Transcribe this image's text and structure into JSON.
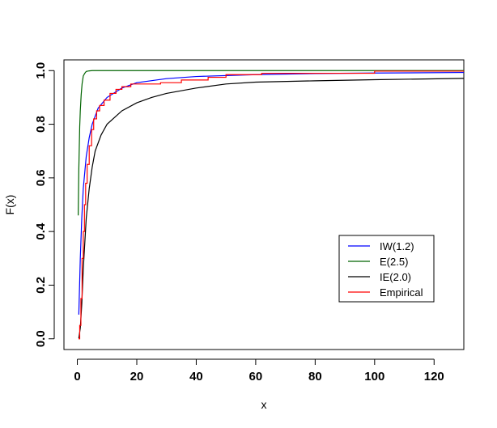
{
  "chart_data": {
    "type": "line",
    "title": "",
    "xlabel": "x",
    "ylabel": "F(x)",
    "xlim": [
      -4.5,
      130
    ],
    "ylim": [
      -0.04,
      1.04
    ],
    "x_ticks": [
      0,
      20,
      40,
      60,
      80,
      100,
      120
    ],
    "y_ticks": [
      0.0,
      0.2,
      0.4,
      0.6,
      0.8,
      1.0
    ],
    "x_tick_labels": [
      "0",
      "20",
      "40",
      "60",
      "80",
      "100",
      "120"
    ],
    "y_tick_labels": [
      "0.0",
      "0.2",
      "0.4",
      "0.6",
      "0.8",
      "1.0"
    ],
    "grid": false,
    "legend_position": "bottom-right",
    "series": [
      {
        "name": "IW(1.2)",
        "color": "#0000ff",
        "style": "line",
        "points": [
          [
            0.5,
            0.09
          ],
          [
            1,
            0.3
          ],
          [
            1.5,
            0.45
          ],
          [
            2,
            0.56
          ],
          [
            3,
            0.68
          ],
          [
            4,
            0.75
          ],
          [
            5,
            0.8
          ],
          [
            7,
            0.86
          ],
          [
            10,
            0.9
          ],
          [
            15,
            0.935
          ],
          [
            20,
            0.955
          ],
          [
            30,
            0.97
          ],
          [
            40,
            0.978
          ],
          [
            60,
            0.985
          ],
          [
            80,
            0.989
          ],
          [
            100,
            0.991
          ],
          [
            130,
            0.993
          ]
        ]
      },
      {
        "name": "E(2.5)",
        "color": "#006400",
        "style": "line",
        "points": [
          [
            0.3,
            0.46
          ],
          [
            0.5,
            0.63
          ],
          [
            0.8,
            0.79
          ],
          [
            1,
            0.85
          ],
          [
            1.3,
            0.91
          ],
          [
            1.6,
            0.95
          ],
          [
            2,
            0.98
          ],
          [
            2.5,
            0.99
          ],
          [
            3,
            0.997
          ],
          [
            4,
            0.999
          ],
          [
            5,
            1.0
          ],
          [
            130,
            1.0
          ]
        ]
      },
      {
        "name": "IE(2.0)",
        "color": "#000000",
        "style": "line",
        "points": [
          [
            0.5,
            0.002
          ],
          [
            1,
            0.04
          ],
          [
            1.5,
            0.13
          ],
          [
            2,
            0.26
          ],
          [
            3,
            0.45
          ],
          [
            4,
            0.56
          ],
          [
            5,
            0.64
          ],
          [
            6,
            0.7
          ],
          [
            8,
            0.76
          ],
          [
            10,
            0.8
          ],
          [
            15,
            0.85
          ],
          [
            20,
            0.88
          ],
          [
            25,
            0.9
          ],
          [
            30,
            0.915
          ],
          [
            40,
            0.935
          ],
          [
            50,
            0.95
          ],
          [
            60,
            0.957
          ],
          [
            80,
            0.962
          ],
          [
            100,
            0.966
          ],
          [
            130,
            0.971
          ]
        ]
      },
      {
        "name": "Empirical",
        "color": "#ff0000",
        "style": "step",
        "points": [
          [
            0.4,
            0.0
          ],
          [
            0.8,
            0.05
          ],
          [
            1.2,
            0.15
          ],
          [
            1.6,
            0.3
          ],
          [
            2,
            0.4
          ],
          [
            2.4,
            0.5
          ],
          [
            2.8,
            0.58
          ],
          [
            3.3,
            0.65
          ],
          [
            4,
            0.72
          ],
          [
            4.8,
            0.78
          ],
          [
            5.5,
            0.82
          ],
          [
            6.5,
            0.85
          ],
          [
            7.5,
            0.87
          ],
          [
            9,
            0.89
          ],
          [
            11,
            0.915
          ],
          [
            13,
            0.93
          ],
          [
            15,
            0.94
          ],
          [
            18,
            0.95
          ],
          [
            28,
            0.955
          ],
          [
            35,
            0.965
          ],
          [
            44,
            0.975
          ],
          [
            50,
            0.985
          ],
          [
            62,
            0.99
          ],
          [
            100,
            0.998
          ],
          [
            130,
            0.998
          ]
        ]
      }
    ]
  }
}
